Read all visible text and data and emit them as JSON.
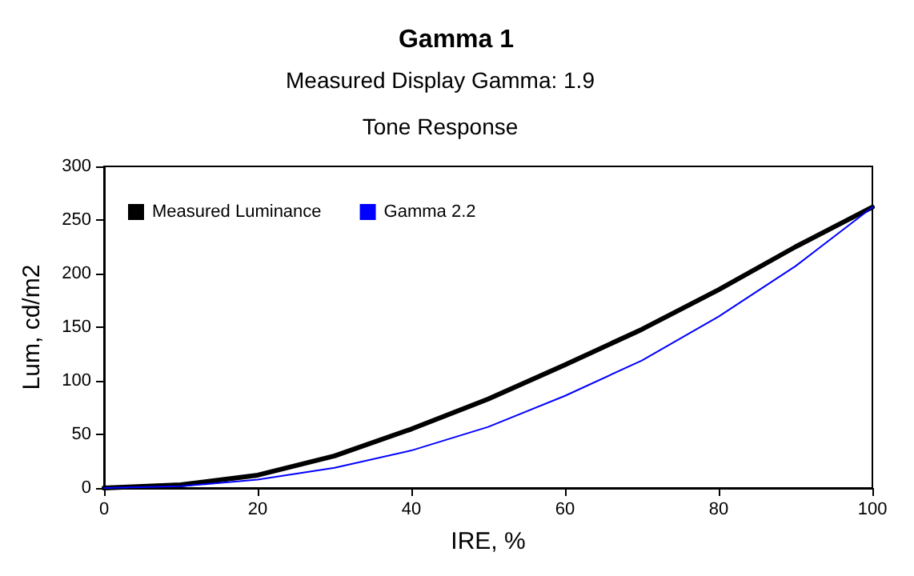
{
  "chart_data": {
    "type": "line",
    "title": "Gamma 1",
    "subtitle": "Measured Display Gamma: 1.9",
    "annotations": [
      "Tone Response"
    ],
    "xlabel": "IRE, %",
    "ylabel": "Lum, cd/m2",
    "x": [
      0,
      10,
      20,
      30,
      40,
      50,
      60,
      70,
      80,
      90,
      100
    ],
    "series": [
      {
        "name": "Measured Luminance",
        "color": "#000000",
        "values": [
          0,
          3,
          12,
          30,
          55,
          83,
          115,
          148,
          185,
          225,
          262
        ]
      },
      {
        "name": "Gamma 2.2",
        "color": "#0000ff",
        "values": [
          0,
          1.6,
          7.9,
          18.8,
          35,
          57,
          86,
          119,
          160,
          207,
          262
        ]
      }
    ],
    "xlim": [
      0,
      100
    ],
    "xticks": [
      0,
      20,
      40,
      60,
      80,
      100
    ],
    "ylim": [
      0,
      300
    ],
    "yticks": [
      0,
      50,
      100,
      150,
      200,
      250,
      300
    ],
    "grid": false,
    "legend": "top left",
    "marker": "none",
    "line_style": "solid"
  }
}
